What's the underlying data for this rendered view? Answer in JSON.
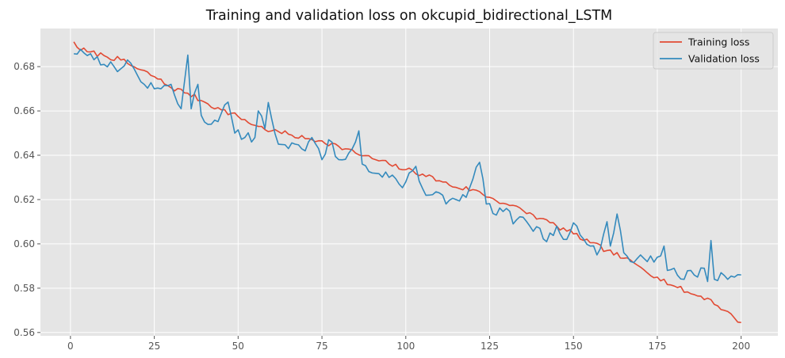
{
  "chart_data": {
    "type": "line",
    "title": "Training and validation loss on okcupid_bidirectional_LSTM",
    "xlabel": "",
    "ylabel": "",
    "xlim": [
      -8.95,
      210.95
    ],
    "ylim": [
      0.5585,
      0.6972
    ],
    "x_ticks": [
      0,
      25,
      50,
      75,
      100,
      125,
      150,
      175,
      200
    ],
    "y_ticks": [
      0.56,
      0.58,
      0.6,
      0.62,
      0.64,
      0.66,
      0.68
    ],
    "x_tick_labels": [
      "0",
      "25",
      "50",
      "75",
      "100",
      "125",
      "150",
      "175",
      "200"
    ],
    "y_tick_labels": [
      "0.56",
      "0.58",
      "0.60",
      "0.62",
      "0.64",
      "0.66",
      "0.68"
    ],
    "grid": true,
    "legend_position": "top-right",
    "x": {
      "start": 1,
      "end": 200,
      "step": 1
    },
    "series": [
      {
        "name": "Training loss",
        "color": "#E24A33",
        "anchors": [
          [
            1,
            0.6912
          ],
          [
            2,
            0.6887
          ],
          [
            5,
            0.6867
          ],
          [
            10,
            0.685
          ],
          [
            15,
            0.683
          ],
          [
            20,
            0.679
          ],
          [
            25,
            0.6755
          ],
          [
            30,
            0.6705
          ],
          [
            35,
            0.668
          ],
          [
            40,
            0.664
          ],
          [
            45,
            0.6605
          ],
          [
            50,
            0.6575
          ],
          [
            55,
            0.6535
          ],
          [
            60,
            0.651
          ],
          [
            65,
            0.6495
          ],
          [
            70,
            0.6475
          ],
          [
            75,
            0.6465
          ],
          [
            80,
            0.644
          ],
          [
            85,
            0.641
          ],
          [
            90,
            0.6385
          ],
          [
            95,
            0.636
          ],
          [
            100,
            0.6335
          ],
          [
            105,
            0.6315
          ],
          [
            110,
            0.6285
          ],
          [
            115,
            0.6255
          ],
          [
            120,
            0.6245
          ],
          [
            125,
            0.621
          ],
          [
            130,
            0.618
          ],
          [
            135,
            0.615
          ],
          [
            140,
            0.6115
          ],
          [
            145,
            0.608
          ],
          [
            150,
            0.6045
          ],
          [
            155,
            0.6005
          ],
          [
            160,
            0.597
          ],
          [
            165,
            0.5935
          ],
          [
            170,
            0.5895
          ],
          [
            175,
            0.585
          ],
          [
            180,
            0.581
          ],
          [
            185,
            0.5775
          ],
          [
            190,
            0.5755
          ],
          [
            195,
            0.57
          ],
          [
            200,
            0.5645
          ]
        ],
        "noise": 0.0012,
        "seed": 7
      },
      {
        "name": "Validation loss",
        "color": "#348ABD",
        "anchors": [
          [
            1,
            0.6858
          ],
          [
            3,
            0.6878
          ],
          [
            5,
            0.685
          ],
          [
            8,
            0.6845
          ],
          [
            10,
            0.681
          ],
          [
            15,
            0.679
          ],
          [
            17,
            0.683
          ],
          [
            20,
            0.676
          ],
          [
            22,
            0.672
          ],
          [
            25,
            0.67
          ],
          [
            27,
            0.67
          ],
          [
            30,
            0.672
          ],
          [
            33,
            0.661
          ],
          [
            35,
            0.6852
          ],
          [
            36,
            0.661
          ],
          [
            38,
            0.672
          ],
          [
            39,
            0.658
          ],
          [
            42,
            0.654
          ],
          [
            45,
            0.659
          ],
          [
            47,
            0.664
          ],
          [
            49,
            0.65
          ],
          [
            52,
            0.648
          ],
          [
            55,
            0.648
          ],
          [
            56,
            0.66
          ],
          [
            58,
            0.652
          ],
          [
            59,
            0.6638
          ],
          [
            62,
            0.645
          ],
          [
            65,
            0.643
          ],
          [
            67,
            0.645
          ],
          [
            70,
            0.642
          ],
          [
            72,
            0.648
          ],
          [
            75,
            0.638
          ],
          [
            77,
            0.647
          ],
          [
            80,
            0.638
          ],
          [
            83,
            0.641
          ],
          [
            86,
            0.651
          ],
          [
            87,
            0.636
          ],
          [
            90,
            0.632
          ],
          [
            95,
            0.63
          ],
          [
            98,
            0.627
          ],
          [
            100,
            0.628
          ],
          [
            103,
            0.635
          ],
          [
            105,
            0.625
          ],
          [
            107,
            0.622
          ],
          [
            110,
            0.623
          ],
          [
            112,
            0.618
          ],
          [
            115,
            0.62
          ],
          [
            118,
            0.621
          ],
          [
            122,
            0.6368
          ],
          [
            124,
            0.618
          ],
          [
            127,
            0.613
          ],
          [
            130,
            0.616
          ],
          [
            132,
            0.609
          ],
          [
            135,
            0.612
          ],
          [
            137,
            0.608
          ],
          [
            140,
            0.607
          ],
          [
            142,
            0.601
          ],
          [
            145,
            0.608
          ],
          [
            148,
            0.602
          ],
          [
            150,
            0.6095
          ],
          [
            152,
            0.604
          ],
          [
            155,
            0.599
          ],
          [
            157,
            0.595
          ],
          [
            160,
            0.61
          ],
          [
            161,
            0.599
          ],
          [
            163,
            0.6135
          ],
          [
            165,
            0.596
          ],
          [
            167,
            0.592
          ],
          [
            170,
            0.595
          ],
          [
            172,
            0.592
          ],
          [
            175,
            0.594
          ],
          [
            177,
            0.599
          ],
          [
            178,
            0.588
          ],
          [
            180,
            0.589
          ],
          [
            183,
            0.584
          ],
          [
            185,
            0.588
          ],
          [
            187,
            0.585
          ],
          [
            189,
            0.589
          ],
          [
            190,
            0.583
          ],
          [
            191,
            0.6015
          ],
          [
            192,
            0.584
          ],
          [
            194,
            0.587
          ],
          [
            196,
            0.584
          ],
          [
            198,
            0.585
          ],
          [
            200,
            0.586
          ]
        ],
        "noise": 0.0022,
        "seed": 13
      }
    ]
  }
}
